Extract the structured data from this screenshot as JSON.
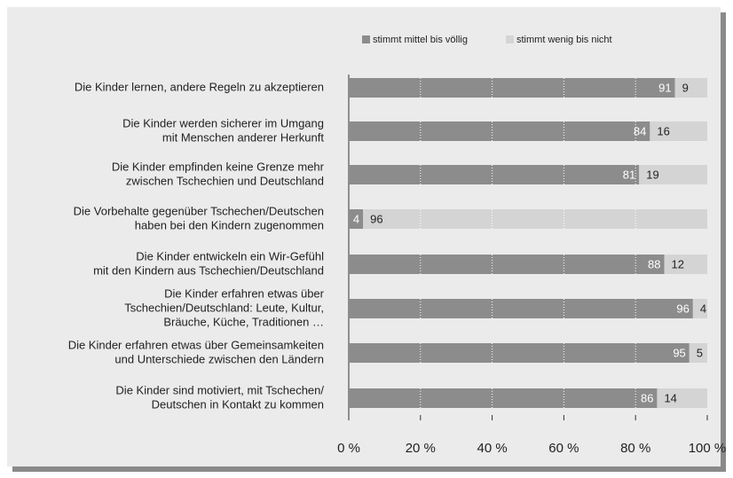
{
  "chart_data": {
    "type": "stacked-bar-horizontal",
    "categories": [
      [
        "Die Kinder lernen, andere Regeln zu akzeptieren"
      ],
      [
        "Die Kinder werden sicherer im Umgang",
        "mit Menschen anderer Herkunft"
      ],
      [
        "Die Kinder empfinden keine Grenze mehr",
        "zwischen Tschechien und Deutschland"
      ],
      [
        "Die Vorbehalte gegenüber Tschechen/Deutschen",
        "haben bei den Kindern zugenommen"
      ],
      [
        "Die Kinder entwickeln ein Wir-Gefühl",
        "mit den Kindern aus Tschechien/Deutschland"
      ],
      [
        "Die Kinder erfahren etwas über",
        "Tschechien/Deutschland: Leute, Kultur,",
        "Bräuche, Küche, Traditionen …"
      ],
      [
        "Die Kinder erfahren etwas über Gemeinsamkeiten",
        "und Unterschiede zwischen den Ländern"
      ],
      [
        "Die Kinder sind motiviert, mit Tschechen/",
        "Deutschen in Kontakt zu kommen"
      ]
    ],
    "series": [
      {
        "name": "stimmt mittel bis völlig",
        "color": "#8c8c8c",
        "values": [
          91,
          84,
          81,
          4,
          88,
          96,
          95,
          86
        ]
      },
      {
        "name": "stimmt wenig bis nicht",
        "color": "#d4d4d4",
        "values": [
          9,
          16,
          19,
          96,
          12,
          4,
          5,
          14
        ]
      }
    ],
    "xlim": [
      0,
      100
    ],
    "xticks": [
      {
        "value": 0,
        "label": "0 %"
      },
      {
        "value": 20,
        "label": "20 %"
      },
      {
        "value": 40,
        "label": "40 %"
      },
      {
        "value": 60,
        "label": "60 %"
      },
      {
        "value": 80,
        "label": "80 %"
      },
      {
        "value": 100,
        "label": "100 %"
      }
    ],
    "grid": true
  }
}
